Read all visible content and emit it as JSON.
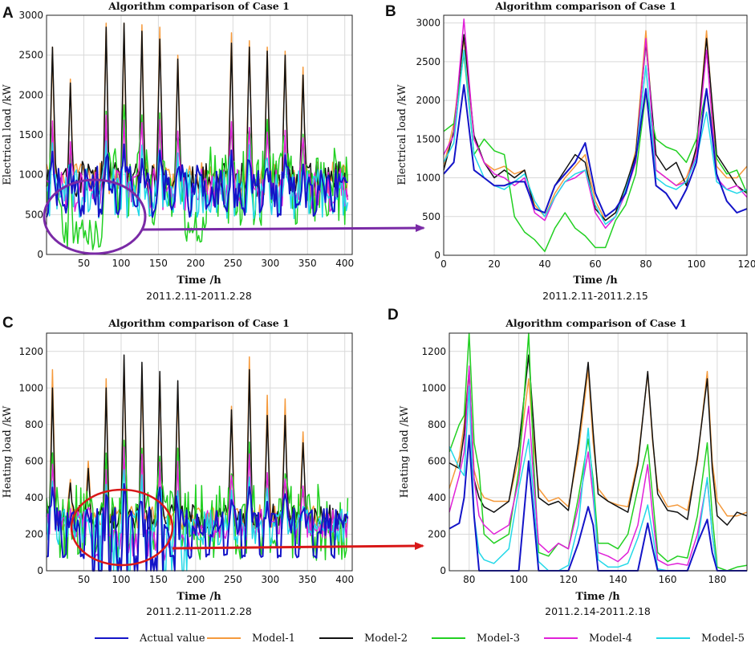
{
  "colors": {
    "Actual value": "#1414c8",
    "Model-1": "#f59a3c",
    "Model-2": "#111111",
    "Model-3": "#22d022",
    "Model-4": "#e020d8",
    "Model-5": "#22d8e8",
    "annot_purple": "#7a2aa6",
    "annot_red": "#d81818"
  },
  "legend": [
    "Actual value",
    "Model-1",
    "Model-2",
    "Model-3",
    "Model-4",
    "Model-5"
  ],
  "chart_data": [
    {
      "panel": "A",
      "type": "line",
      "title": "Algorithm comparison of Case 1",
      "xlabel": "Time /h",
      "ylabel": "Electrical load /kW",
      "date_range": "2011.2.11-2011.2.28",
      "xlim": [
        0,
        410
      ],
      "ylim": [
        0,
        3000
      ],
      "xticks": [
        50,
        100,
        150,
        200,
        250,
        300,
        350,
        400
      ],
      "yticks": [
        0,
        500,
        1000,
        1500,
        2000,
        2500,
        3000
      ],
      "peaks": [
        {
          "t": 8,
          "m1": 2600,
          "m2": 2600
        },
        {
          "t": 32,
          "m1": 2200,
          "m2": 2150
        },
        {
          "t": 80,
          "m1": 2900,
          "m2": 2850
        },
        {
          "t": 104,
          "m1": 2900,
          "m2": 2900
        },
        {
          "t": 128,
          "m1": 2880,
          "m2": 2800
        },
        {
          "t": 152,
          "m1": 2850,
          "m2": 2700
        },
        {
          "t": 176,
          "m1": 2500,
          "m2": 2450
        },
        {
          "t": 248,
          "m1": 2780,
          "m2": 2650
        },
        {
          "t": 272,
          "m1": 2680,
          "m2": 2600
        },
        {
          "t": 296,
          "m1": 2600,
          "m2": 2550
        },
        {
          "t": 320,
          "m1": 2550,
          "m2": 2500
        },
        {
          "t": 344,
          "m1": 2350,
          "m2": 2250
        }
      ],
      "baseline": 900,
      "low": 550
    },
    {
      "panel": "B",
      "type": "line",
      "title": "Algorithm comparison of Case 1",
      "xlabel": "Time /h",
      "ylabel": "Electrical load /kW",
      "date_range": "2011.2.11-2011.2.15",
      "xlim": [
        0,
        120
      ],
      "ylim": [
        0,
        3100
      ],
      "xticks": [
        0,
        20,
        40,
        60,
        80,
        100,
        120
      ],
      "yticks": [
        0,
        500,
        1000,
        1500,
        2000,
        2500,
        3000
      ],
      "series": [
        {
          "name": "Actual value",
          "x": [
            0,
            4,
            8,
            12,
            16,
            20,
            24,
            28,
            32,
            36,
            40,
            44,
            48,
            52,
            56,
            60,
            64,
            68,
            72,
            76,
            80,
            84,
            88,
            92,
            96,
            100,
            104,
            108,
            112,
            116,
            120
          ],
          "values": [
            1050,
            1200,
            2200,
            1100,
            1000,
            900,
            900,
            950,
            950,
            600,
            550,
            900,
            1050,
            1200,
            1450,
            800,
            500,
            600,
            800,
            1250,
            2150,
            900,
            800,
            600,
            850,
            1200,
            2150,
            1050,
            700,
            550,
            600
          ]
        },
        {
          "name": "Model-1",
          "x": [
            0,
            4,
            8,
            12,
            16,
            20,
            24,
            28,
            32,
            36,
            40,
            44,
            48,
            52,
            56,
            60,
            64,
            68,
            72,
            76,
            80,
            84,
            88,
            92,
            96,
            100,
            104,
            108,
            112,
            116,
            120
          ],
          "values": [
            1150,
            1700,
            2800,
            1500,
            1200,
            1100,
            1150,
            1050,
            1100,
            650,
            500,
            800,
            1000,
            1150,
            1300,
            700,
            450,
            550,
            850,
            1350,
            2900,
            1100,
            1000,
            900,
            1000,
            1350,
            2900,
            1150,
            1000,
            1000,
            1150
          ]
        },
        {
          "name": "Model-2",
          "x": [
            0,
            4,
            8,
            12,
            16,
            20,
            24,
            28,
            32,
            36,
            40,
            44,
            48,
            52,
            56,
            60,
            64,
            68,
            72,
            76,
            80,
            84,
            88,
            92,
            96,
            100,
            104,
            108,
            112,
            116,
            120
          ],
          "values": [
            1100,
            1600,
            2850,
            1550,
            1200,
            1000,
            1100,
            1000,
            1100,
            600,
            550,
            900,
            1100,
            1300,
            1200,
            600,
            450,
            550,
            900,
            1300,
            2750,
            1300,
            1100,
            1200,
            900,
            1400,
            2800,
            1300,
            1100,
            900,
            800
          ]
        },
        {
          "name": "Model-3",
          "x": [
            0,
            4,
            8,
            12,
            16,
            20,
            24,
            28,
            32,
            36,
            40,
            44,
            48,
            52,
            56,
            60,
            64,
            68,
            72,
            76,
            80,
            84,
            88,
            92,
            96,
            100,
            104,
            108,
            112,
            116,
            120
          ],
          "values": [
            1600,
            1700,
            2600,
            1300,
            1500,
            1350,
            1300,
            500,
            300,
            200,
            50,
            350,
            550,
            350,
            250,
            100,
            100,
            450,
            650,
            1050,
            2100,
            1500,
            1400,
            1350,
            1200,
            1500,
            2150,
            1250,
            1050,
            1100,
            800
          ]
        },
        {
          "name": "Model-4",
          "x": [
            0,
            4,
            8,
            12,
            16,
            20,
            24,
            28,
            32,
            36,
            40,
            44,
            48,
            52,
            56,
            60,
            64,
            68,
            72,
            76,
            80,
            84,
            88,
            92,
            96,
            100,
            104,
            108,
            112,
            116,
            120
          ],
          "values": [
            1300,
            1550,
            3050,
            1500,
            1200,
            1050,
            1000,
            900,
            1000,
            550,
            450,
            750,
            950,
            1000,
            1100,
            550,
            350,
            500,
            800,
            1200,
            2800,
            1100,
            1000,
            900,
            950,
            1300,
            2650,
            1000,
            850,
            900,
            750
          ]
        },
        {
          "name": "Model-5",
          "x": [
            0,
            4,
            8,
            12,
            16,
            20,
            24,
            28,
            32,
            36,
            40,
            44,
            48,
            52,
            56,
            60,
            64,
            68,
            72,
            76,
            80,
            84,
            88,
            92,
            96,
            100,
            104,
            108,
            112,
            116,
            120
          ],
          "values": [
            1200,
            1450,
            2650,
            1300,
            1000,
            900,
            850,
            950,
            1050,
            700,
            500,
            750,
            950,
            1050,
            1100,
            650,
            400,
            500,
            850,
            1250,
            2450,
            1000,
            900,
            850,
            950,
            1250,
            1850,
            950,
            850,
            800,
            850
          ]
        }
      ]
    },
    {
      "panel": "C",
      "type": "line",
      "title": "Algorithm comparison of Case 1",
      "xlabel": "Time /h",
      "ylabel": "Heating load /kW",
      "date_range": "2011.2.11-2011.2.28",
      "xlim": [
        0,
        410
      ],
      "ylim": [
        0,
        1300
      ],
      "xticks": [
        50,
        100,
        150,
        200,
        250,
        300,
        350,
        400
      ],
      "yticks": [
        0,
        200,
        400,
        600,
        800,
        1000,
        1200
      ],
      "peaks": [
        {
          "t": 8,
          "m1": 1100,
          "m2": 1000
        },
        {
          "t": 32,
          "m1": 500,
          "m2": 480
        },
        {
          "t": 56,
          "m1": 600,
          "m2": 560
        },
        {
          "t": 80,
          "m1": 1050,
          "m2": 1000
        },
        {
          "t": 104,
          "m1": 1150,
          "m2": 1180
        },
        {
          "t": 128,
          "m1": 1100,
          "m2": 1140
        },
        {
          "t": 152,
          "m1": 1070,
          "m2": 1090
        },
        {
          "t": 176,
          "m1": 1000,
          "m2": 1040
        },
        {
          "t": 248,
          "m1": 900,
          "m2": 880
        },
        {
          "t": 272,
          "m1": 1170,
          "m2": 1100
        },
        {
          "t": 296,
          "m1": 960,
          "m2": 850
        },
        {
          "t": 320,
          "m1": 940,
          "m2": 850
        },
        {
          "t": 344,
          "m1": 760,
          "m2": 700
        }
      ],
      "baseline": 280,
      "low": 80
    },
    {
      "panel": "D",
      "type": "line",
      "title": "Algorithm comparison of Case 1",
      "xlabel": "Time /h",
      "ylabel": "Heating load /kW",
      "date_range": "2011.2.14-2011.2.18",
      "xlim": [
        72,
        192
      ],
      "ylim": [
        0,
        1300
      ],
      "xticks": [
        80,
        100,
        120,
        140,
        160,
        180
      ],
      "yticks": [
        0,
        200,
        400,
        600,
        800,
        1000,
        1200
      ],
      "series": [
        {
          "name": "Actual value",
          "x": [
            72,
            76,
            78,
            80,
            82,
            84,
            86,
            90,
            96,
            100,
            104,
            106,
            108,
            112,
            116,
            120,
            124,
            128,
            130,
            132,
            136,
            140,
            144,
            148,
            152,
            154,
            156,
            160,
            164,
            168,
            172,
            176,
            178,
            180,
            184,
            188,
            192
          ],
          "values": [
            230,
            260,
            400,
            740,
            300,
            0,
            0,
            0,
            0,
            0,
            600,
            300,
            0,
            0,
            0,
            0,
            150,
            350,
            250,
            0,
            0,
            0,
            0,
            0,
            260,
            120,
            0,
            0,
            0,
            0,
            150,
            280,
            100,
            0,
            0,
            0,
            0
          ]
        },
        {
          "name": "Model-1",
          "x": [
            72,
            76,
            78,
            80,
            82,
            84,
            86,
            90,
            96,
            100,
            104,
            106,
            108,
            112,
            116,
            120,
            124,
            128,
            130,
            132,
            136,
            140,
            144,
            148,
            152,
            154,
            156,
            160,
            164,
            168,
            172,
            176,
            178,
            180,
            184,
            188,
            192
          ],
          "values": [
            450,
            620,
            800,
            1100,
            550,
            450,
            400,
            380,
            380,
            620,
            1050,
            700,
            450,
            380,
            400,
            350,
            650,
            1100,
            700,
            450,
            380,
            360,
            350,
            600,
            1080,
            700,
            450,
            350,
            360,
            330,
            600,
            1090,
            600,
            380,
            300,
            300,
            320
          ]
        },
        {
          "name": "Model-2",
          "x": [
            72,
            76,
            78,
            80,
            82,
            84,
            86,
            90,
            96,
            100,
            104,
            106,
            108,
            112,
            116,
            120,
            124,
            128,
            130,
            132,
            136,
            140,
            144,
            148,
            152,
            154,
            156,
            160,
            164,
            168,
            172,
            176,
            178,
            180,
            184,
            188,
            192
          ],
          "values": [
            590,
            560,
            750,
            1100,
            500,
            400,
            350,
            320,
            380,
            680,
            1180,
            800,
            400,
            360,
            380,
            330,
            700,
            1140,
            760,
            420,
            380,
            350,
            320,
            580,
            1090,
            720,
            420,
            330,
            320,
            280,
            620,
            1050,
            560,
            300,
            250,
            320,
            300
          ]
        },
        {
          "name": "Model-3",
          "x": [
            72,
            76,
            78,
            80,
            82,
            84,
            86,
            90,
            96,
            100,
            104,
            106,
            108,
            112,
            116,
            120,
            124,
            128,
            130,
            132,
            136,
            140,
            144,
            148,
            152,
            154,
            156,
            160,
            164,
            168,
            172,
            176,
            178,
            180,
            184,
            188,
            192
          ],
          "values": [
            650,
            800,
            850,
            1300,
            700,
            550,
            200,
            150,
            200,
            550,
            1300,
            600,
            100,
            80,
            150,
            120,
            400,
            720,
            500,
            150,
            150,
            120,
            200,
            450,
            690,
            400,
            100,
            50,
            80,
            70,
            300,
            700,
            300,
            20,
            0,
            20,
            30
          ]
        },
        {
          "name": "Model-4",
          "x": [
            72,
            76,
            78,
            80,
            82,
            84,
            86,
            90,
            96,
            100,
            104,
            106,
            108,
            112,
            116,
            120,
            124,
            128,
            130,
            132,
            136,
            140,
            144,
            148,
            152,
            154,
            156,
            160,
            164,
            168,
            172,
            176,
            178,
            180,
            184,
            188,
            192
          ],
          "values": [
            320,
            520,
            650,
            1120,
            500,
            300,
            250,
            200,
            250,
            500,
            900,
            500,
            150,
            100,
            150,
            120,
            350,
            650,
            400,
            100,
            80,
            50,
            100,
            250,
            580,
            300,
            60,
            30,
            40,
            30,
            200,
            500,
            200,
            0,
            0,
            0,
            0
          ]
        },
        {
          "name": "Model-5",
          "x": [
            72,
            76,
            78,
            80,
            82,
            84,
            86,
            90,
            96,
            100,
            104,
            106,
            108,
            112,
            116,
            120,
            124,
            128,
            130,
            132,
            136,
            140,
            144,
            148,
            152,
            154,
            156,
            160,
            164,
            168,
            172,
            176,
            178,
            180,
            184,
            188,
            192
          ],
          "values": [
            680,
            560,
            520,
            1010,
            300,
            100,
            60,
            40,
            120,
            450,
            720,
            400,
            50,
            0,
            0,
            30,
            250,
            780,
            450,
            60,
            20,
            20,
            40,
            180,
            360,
            200,
            10,
            0,
            0,
            0,
            150,
            510,
            200,
            0,
            0,
            0,
            0
          ]
        }
      ]
    }
  ]
}
